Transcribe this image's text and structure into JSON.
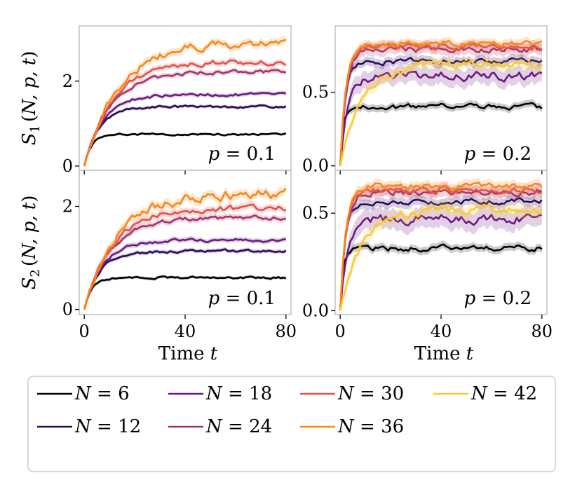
{
  "chart_data": {
    "type": "line",
    "layout": "2x2 grid of line plots with shaded uncertainty bands, shared legend below",
    "colors": {
      "6": "#000004",
      "12": "#2a0b5c",
      "18": "#6c1a80",
      "24": "#a83266",
      "30": "#e2504a",
      "36": "#f9861b",
      "42": "#fcc935"
    },
    "x_tick_labels": [
      "0",
      "40",
      "80"
    ],
    "x_axis_label_text": "Time",
    "x_axis_label_symbol": "t",
    "legend": [
      {
        "label": "N = 6",
        "N": 6
      },
      {
        "label": "N = 18",
        "N": 18
      },
      {
        "label": "N = 30",
        "N": 30
      },
      {
        "label": "N = 42",
        "N": 42
      },
      {
        "label": "N = 12",
        "N": 12
      },
      {
        "label": "N = 24",
        "N": 24
      },
      {
        "label": "N = 36",
        "N": 36
      }
    ],
    "panels": [
      {
        "id": "S1-p0.1",
        "ylabel": "S1(N, p, t)",
        "annotation": "p = 0.1",
        "xlim": [
          -2,
          82
        ],
        "ylim": [
          -0.1,
          3.3
        ],
        "y_ticks": [
          0,
          2
        ],
        "y_tick_labels": [
          "0",
          "2"
        ],
        "x_labels": false,
        "series": [
          {
            "N": 6,
            "plateau": 0.75,
            "rate": 0.35,
            "noise": 0.02,
            "band": 0.03
          },
          {
            "N": 12,
            "plateau": 1.4,
            "rate": 0.17,
            "noise": 0.025,
            "band": 0.04
          },
          {
            "N": 18,
            "plateau": 1.68,
            "rate": 0.14,
            "noise": 0.03,
            "band": 0.05
          },
          {
            "N": 24,
            "plateau": 2.22,
            "rate": 0.1,
            "noise": 0.035,
            "band": 0.06
          },
          {
            "N": 30,
            "plateau": 2.45,
            "rate": 0.09,
            "noise": 0.05,
            "band": 0.07
          },
          {
            "N": 36,
            "plateau": 2.9,
            "rate": 0.075,
            "noise": 0.08,
            "band": 0.09
          }
        ]
      },
      {
        "id": "S1-p0.2",
        "ylabel": "",
        "annotation": "p = 0.2",
        "xlim": [
          -2,
          82
        ],
        "ylim": [
          -0.03,
          0.95
        ],
        "y_ticks": [
          0.0,
          0.5
        ],
        "y_tick_labels": [
          "0.0",
          "0.5"
        ],
        "x_labels": false,
        "series": [
          {
            "N": 6,
            "plateau": 0.4,
            "rate": 0.8,
            "noise": 0.015,
            "band": 0.025
          },
          {
            "N": 12,
            "plateau": 0.71,
            "rate": 0.5,
            "noise": 0.015,
            "band": 0.03
          },
          {
            "N": 18,
            "plateau": 0.61,
            "rate": 0.35,
            "noise": 0.025,
            "band": 0.06
          },
          {
            "N": 24,
            "plateau": 0.79,
            "rate": 0.45,
            "noise": 0.018,
            "band": 0.04
          },
          {
            "N": 30,
            "plateau": 0.81,
            "rate": 0.45,
            "noise": 0.015,
            "band": 0.03
          },
          {
            "N": 36,
            "plateau": 0.83,
            "rate": 0.45,
            "noise": 0.015,
            "band": 0.03
          },
          {
            "N": 42,
            "plateau": 0.69,
            "rate": 0.12,
            "noise": 0.02,
            "band": 0.04
          }
        ]
      },
      {
        "id": "S2-p0.1",
        "ylabel": "S2(N, p, t)",
        "annotation": "p = 0.1",
        "xlim": [
          -2,
          82
        ],
        "ylim": [
          -0.1,
          2.7
        ],
        "y_ticks": [
          0,
          2
        ],
        "y_tick_labels": [
          "0",
          "2"
        ],
        "x_labels": true,
        "series": [
          {
            "N": 6,
            "plateau": 0.62,
            "rate": 0.35,
            "noise": 0.018,
            "band": 0.03
          },
          {
            "N": 12,
            "plateau": 1.13,
            "rate": 0.17,
            "noise": 0.022,
            "band": 0.04
          },
          {
            "N": 18,
            "plateau": 1.34,
            "rate": 0.14,
            "noise": 0.025,
            "band": 0.05
          },
          {
            "N": 24,
            "plateau": 1.78,
            "rate": 0.1,
            "noise": 0.03,
            "band": 0.06
          },
          {
            "N": 30,
            "plateau": 1.97,
            "rate": 0.09,
            "noise": 0.045,
            "band": 0.07
          },
          {
            "N": 36,
            "plateau": 2.25,
            "rate": 0.075,
            "noise": 0.08,
            "band": 0.09
          }
        ]
      },
      {
        "id": "S2-p0.2",
        "ylabel": "",
        "annotation": "p = 0.2",
        "xlim": [
          -2,
          82
        ],
        "ylim": [
          -0.02,
          0.72
        ],
        "y_ticks": [
          0.0,
          0.5
        ],
        "y_tick_labels": [
          "0.0",
          "0.5"
        ],
        "x_labels": true,
        "series": [
          {
            "N": 6,
            "plateau": 0.32,
            "rate": 0.8,
            "noise": 0.012,
            "band": 0.02
          },
          {
            "N": 12,
            "plateau": 0.56,
            "rate": 0.5,
            "noise": 0.012,
            "band": 0.025
          },
          {
            "N": 18,
            "plateau": 0.47,
            "rate": 0.35,
            "noise": 0.02,
            "band": 0.05
          },
          {
            "N": 24,
            "plateau": 0.61,
            "rate": 0.45,
            "noise": 0.015,
            "band": 0.03
          },
          {
            "N": 30,
            "plateau": 0.62,
            "rate": 0.45,
            "noise": 0.013,
            "band": 0.025
          },
          {
            "N": 36,
            "plateau": 0.64,
            "rate": 0.45,
            "noise": 0.013,
            "band": 0.025
          },
          {
            "N": 42,
            "plateau": 0.52,
            "rate": 0.12,
            "noise": 0.018,
            "band": 0.035
          }
        ]
      }
    ]
  }
}
